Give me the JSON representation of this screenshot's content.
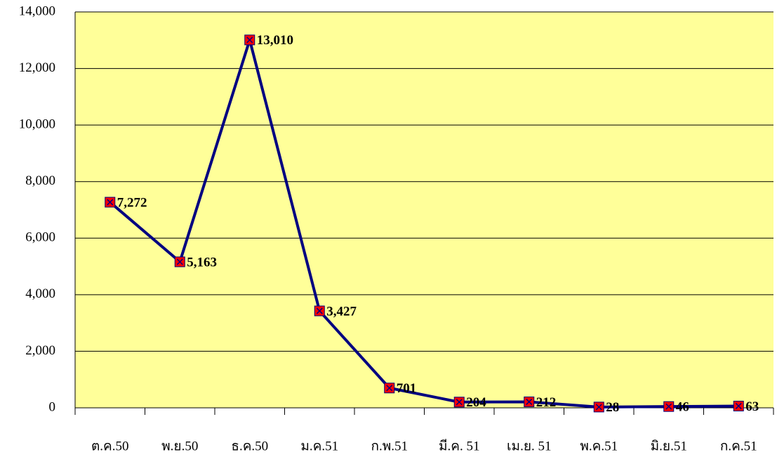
{
  "chart_data": {
    "type": "line",
    "categories": [
      "ต.ค.50",
      "พ.ย.50",
      "ธ.ค.50",
      "ม.ค.51",
      "ก.พ.51",
      "มี.ค. 51",
      "เม.ย. 51",
      "พ.ค.51",
      "มิ.ย.51",
      "ก.ค.51"
    ],
    "series": [
      {
        "name": null,
        "color": "#000080",
        "values": [
          7272,
          5163,
          13010,
          3427,
          701,
          204,
          212,
          28,
          46,
          63
        ],
        "value_labels": [
          "7,272",
          "5,163",
          "13,010",
          "3,427",
          "701",
          "204",
          "212",
          "28",
          "46",
          "63"
        ]
      }
    ],
    "ylim": [
      0,
      14000
    ],
    "yticks": [
      0,
      {
        "value": 2000,
        "label": "2,000"
      },
      {
        "value": 4000,
        "label": "4,000"
      },
      {
        "value": 6000,
        "label": "6,000"
      },
      {
        "value": 8000,
        "label": "8,000"
      },
      {
        "value": 10000,
        "label": "10,000"
      },
      {
        "value": 12000,
        "label": "12,000"
      },
      {
        "value": 14000,
        "label": "14,000"
      }
    ],
    "grid": true,
    "plot_background": "#ffff99",
    "marker_color": "#ff0000"
  }
}
